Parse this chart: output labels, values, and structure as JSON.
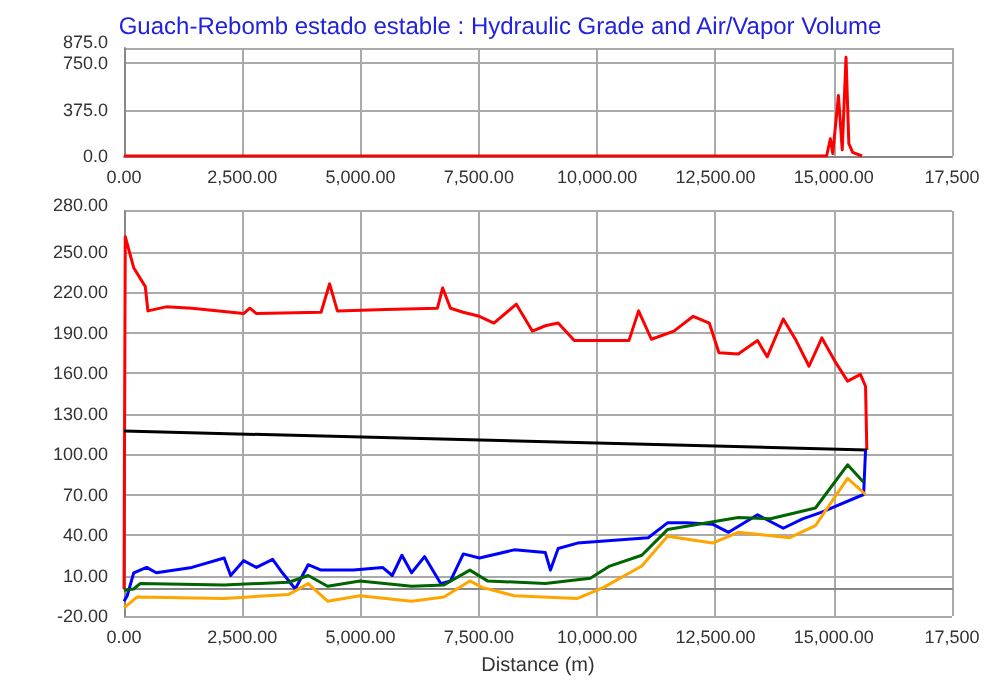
{
  "chart_data": [
    {
      "type": "line",
      "title": "Guach-Rebomb estado estable : Hydraulic Grade and Air/Vapor Volume",
      "grid": true,
      "marker": "none",
      "line_style": "solid",
      "xlim": [
        0,
        17500
      ],
      "xticks": [
        {
          "value": 0,
          "label": "0.00"
        },
        {
          "value": 2500,
          "label": "2,500.00"
        },
        {
          "value": 5000,
          "label": "5,000.00"
        },
        {
          "value": 7500,
          "label": "7,500.00"
        },
        {
          "value": 10000,
          "label": "10,000.00"
        },
        {
          "value": 12500,
          "label": "12,500.00"
        },
        {
          "value": 15000,
          "label": "15,000.00"
        },
        {
          "value": 17500,
          "label": "17,500"
        }
      ],
      "ylim": [
        0,
        875
      ],
      "yticks": [
        {
          "value": 0,
          "label": "0.0"
        },
        {
          "value": 375,
          "label": "375.0"
        },
        {
          "value": 750,
          "label": "750.0"
        },
        {
          "value": 875,
          "label": "875.0"
        }
      ],
      "series": [
        {
          "color": "#ff0000",
          "x": [
            0,
            14850,
            14930,
            14980,
            15100,
            15180,
            15260,
            15320,
            15400,
            15600
          ],
          "values": [
            0,
            0,
            140,
            20,
            490,
            50,
            800,
            100,
            30,
            0
          ]
        }
      ]
    },
    {
      "type": "line",
      "xlabel": "Distance (m)",
      "grid": true,
      "marker": "none",
      "line_style": "solid",
      "xlim": [
        0,
        17500
      ],
      "xticks": [
        {
          "value": 0,
          "label": "0.00"
        },
        {
          "value": 2500,
          "label": "2,500.00"
        },
        {
          "value": 5000,
          "label": "5,000.00"
        },
        {
          "value": 7500,
          "label": "7,500.00"
        },
        {
          "value": 10000,
          "label": "10,000.00"
        },
        {
          "value": 12500,
          "label": "12,500.00"
        },
        {
          "value": 15000,
          "label": "15,000.00"
        },
        {
          "value": 17500,
          "label": "17,500"
        }
      ],
      "ylim": [
        -20,
        280
      ],
      "yticks": [
        {
          "value": -20,
          "label": "-20.00"
        },
        {
          "value": 10,
          "label": "10.00"
        },
        {
          "value": 40,
          "label": "40.00"
        },
        {
          "value": 70,
          "label": "70.00"
        },
        {
          "value": 100,
          "label": "100.00"
        },
        {
          "value": 130,
          "label": "130.00"
        },
        {
          "value": 160,
          "label": "160.00"
        },
        {
          "value": 190,
          "label": "190.00"
        },
        {
          "value": 220,
          "label": "220.00"
        },
        {
          "value": 250,
          "label": "250.00"
        },
        {
          "value": 280,
          "label": "280.00"
        }
      ],
      "series": [
        {
          "color": "#ff0000",
          "x": [
            0,
            27,
            205,
            450,
            505,
            890,
            1435,
            2527,
            2660,
            2800,
            4165,
            4345,
            4510,
            5530,
            6625,
            6735,
            6900,
            7170,
            7510,
            7818,
            8292,
            8633,
            8905,
            9176,
            9516,
            10672,
            10876,
            11147,
            11623,
            12031,
            12370,
            12574,
            12982,
            13390,
            13594,
            13934,
            14206,
            14478,
            14750,
            15020,
            15293,
            15565,
            15673,
            15700
          ],
          "values": [
            0,
            261,
            238,
            224,
            206,
            209,
            208,
            204,
            208,
            204,
            205,
            226,
            206,
            207,
            208,
            223,
            208,
            205,
            202,
            197,
            211,
            191,
            195,
            197,
            184,
            184,
            206,
            185,
            191,
            202,
            197,
            175,
            174,
            184,
            172,
            200,
            184,
            165,
            186,
            169,
            154,
            159,
            150,
            103
          ]
        },
        {
          "color": "#000000",
          "x": [
            0,
            15700
          ],
          "values": [
            117,
            103
          ]
        },
        {
          "color": "#0000ff",
          "x": [
            0,
            68,
            205,
            478,
            683,
            1435,
            2117,
            2254,
            2527,
            2800,
            3142,
            3347,
            3620,
            3893,
            4166,
            4850,
            5464,
            5669,
            5874,
            6079,
            6352,
            6694,
            6900,
            7172,
            7514,
            8250,
            8905,
            9013,
            9176,
            9584,
            11080,
            11487,
            11895,
            12438,
            12778,
            13390,
            13934,
            14342,
            14750,
            15632,
            15673
          ],
          "values": [
            -9,
            -5,
            12,
            16,
            12,
            16,
            23,
            10,
            21,
            16,
            22,
            12,
            0,
            18,
            14,
            14,
            16,
            10,
            25,
            12,
            24,
            4,
            6,
            26,
            23,
            29,
            27,
            14,
            30,
            34,
            38,
            49,
            49,
            48,
            42,
            55,
            45,
            52,
            57,
            70,
            103
          ]
        },
        {
          "color": "#006400",
          "x": [
            0,
            205,
            340,
            2117,
            3484,
            3893,
            4304,
            4987,
            6079,
            6762,
            7309,
            7682,
            8905,
            9856,
            10264,
            10944,
            11487,
            12982,
            13662,
            14614,
            15293,
            15632
          ],
          "values": [
            -1,
            0,
            4,
            3,
            5,
            10,
            2,
            6,
            2,
            3,
            14,
            6,
            4,
            8,
            17,
            25,
            44,
            53,
            52,
            60,
            92,
            79
          ]
        },
        {
          "color": "#ffa500",
          "x": [
            0,
            273,
            2117,
            3484,
            3893,
            4304,
            4987,
            6079,
            6762,
            7309,
            7582,
            8250,
            9584,
            10128,
            10944,
            11487,
            12438,
            12982,
            14070,
            14614,
            15293,
            15673
          ],
          "values": [
            -14,
            -6,
            -7,
            -4,
            4,
            -9,
            -5,
            -9,
            -6,
            6,
            1,
            -5,
            -7,
            1,
            17,
            39,
            34,
            42,
            38,
            47,
            82,
            70
          ]
        }
      ]
    }
  ]
}
